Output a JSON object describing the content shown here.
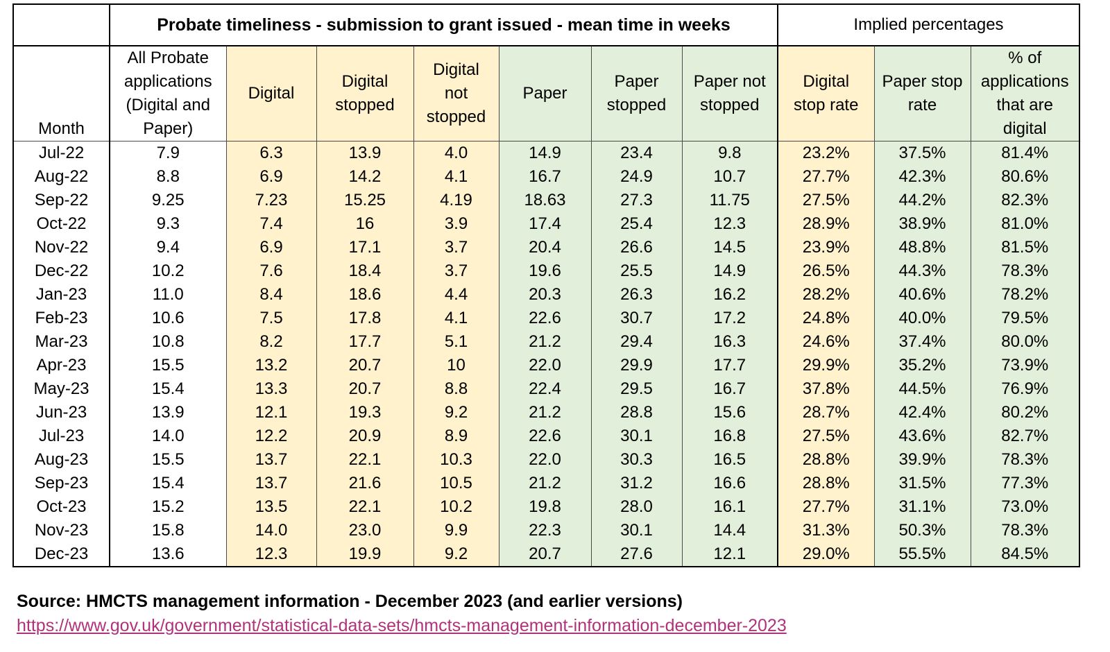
{
  "table": {
    "title": "Probate timeliness - submission to grant issued - mean time in weeks",
    "implied_title": "Implied percentages",
    "headers": [
      [
        "Month"
      ],
      [
        "All Probate",
        "applications",
        "(Digital and",
        "Paper)"
      ],
      [
        "Digital"
      ],
      [
        "Digital",
        "stopped"
      ],
      [
        "Digital",
        "not",
        "stopped"
      ],
      [
        "Paper"
      ],
      [
        "Paper",
        "stopped"
      ],
      [
        "Paper not",
        "stopped"
      ],
      [
        "Digital",
        "stop rate"
      ],
      [
        "Paper stop",
        "rate"
      ],
      [
        "% of",
        "applications",
        "that are",
        "digital"
      ]
    ],
    "column_colors": [
      "#ffffff",
      "#ffffff",
      "#fff2cc",
      "#fff2cc",
      "#fff2cc",
      "#e2efda",
      "#e2efda",
      "#e2efda",
      "#fff2cc",
      "#e2efda",
      "#e2efda"
    ],
    "rows": [
      [
        "Jul-22",
        "7.9",
        "6.3",
        "13.9",
        "4.0",
        "14.9",
        "23.4",
        "9.8",
        "23.2%",
        "37.5%",
        "81.4%"
      ],
      [
        "Aug-22",
        "8.8",
        "6.9",
        "14.2",
        "4.1",
        "16.7",
        "24.9",
        "10.7",
        "27.7%",
        "42.3%",
        "80.6%"
      ],
      [
        "Sep-22",
        "9.25",
        "7.23",
        "15.25",
        "4.19",
        "18.63",
        "27.3",
        "11.75",
        "27.5%",
        "44.2%",
        "82.3%"
      ],
      [
        "Oct-22",
        "9.3",
        "7.4",
        "16",
        "3.9",
        "17.4",
        "25.4",
        "12.3",
        "28.9%",
        "38.9%",
        "81.0%"
      ],
      [
        "Nov-22",
        "9.4",
        "6.9",
        "17.1",
        "3.7",
        "20.4",
        "26.6",
        "14.5",
        "23.9%",
        "48.8%",
        "81.5%"
      ],
      [
        "Dec-22",
        "10.2",
        "7.6",
        "18.4",
        "3.7",
        "19.6",
        "25.5",
        "14.9",
        "26.5%",
        "44.3%",
        "78.3%"
      ],
      [
        "Jan-23",
        "11.0",
        "8.4",
        "18.6",
        "4.4",
        "20.3",
        "26.3",
        "16.2",
        "28.2%",
        "40.6%",
        "78.2%"
      ],
      [
        "Feb-23",
        "10.6",
        "7.5",
        "17.8",
        "4.1",
        "22.6",
        "30.7",
        "17.2",
        "24.8%",
        "40.0%",
        "79.5%"
      ],
      [
        "Mar-23",
        "10.8",
        "8.2",
        "17.7",
        "5.1",
        "21.2",
        "29.4",
        "16.3",
        "24.6%",
        "37.4%",
        "80.0%"
      ],
      [
        "Apr-23",
        "15.5",
        "13.2",
        "20.7",
        "10",
        "22.0",
        "29.9",
        "17.7",
        "29.9%",
        "35.2%",
        "73.9%"
      ],
      [
        "May-23",
        "15.4",
        "13.3",
        "20.7",
        "8.8",
        "22.4",
        "29.5",
        "16.7",
        "37.8%",
        "44.5%",
        "76.9%"
      ],
      [
        "Jun-23",
        "13.9",
        "12.1",
        "19.3",
        "9.2",
        "21.2",
        "28.8",
        "15.6",
        "28.7%",
        "42.4%",
        "80.2%"
      ],
      [
        "Jul-23",
        "14.0",
        "12.2",
        "20.9",
        "8.9",
        "22.6",
        "30.1",
        "16.8",
        "27.5%",
        "43.6%",
        "82.7%"
      ],
      [
        "Aug-23",
        "15.5",
        "13.7",
        "22.1",
        "10.3",
        "22.0",
        "30.3",
        "16.5",
        "28.8%",
        "39.9%",
        "78.3%"
      ],
      [
        "Sep-23",
        "15.4",
        "13.7",
        "21.6",
        "10.5",
        "21.2",
        "31.2",
        "16.6",
        "28.8%",
        "31.5%",
        "77.3%"
      ],
      [
        "Oct-23",
        "15.2",
        "13.5",
        "22.1",
        "10.2",
        "19.8",
        "28.0",
        "16.1",
        "27.7%",
        "31.1%",
        "73.0%"
      ],
      [
        "Nov-23",
        "15.8",
        "14.0",
        "23.0",
        "9.9",
        "22.3",
        "30.1",
        "14.4",
        "31.3%",
        "50.3%",
        "78.3%"
      ],
      [
        "Dec-23",
        "13.6",
        "12.3",
        "19.9",
        "9.2",
        "20.7",
        "27.6",
        "12.1",
        "29.0%",
        "55.5%",
        "84.5%"
      ]
    ]
  },
  "source": {
    "text": "Source: HMCTS management information - December 2023 (and earlier versions)",
    "link": "https://www.gov.uk/government/statistical-data-sets/hmcts-management-information-december-2023"
  }
}
